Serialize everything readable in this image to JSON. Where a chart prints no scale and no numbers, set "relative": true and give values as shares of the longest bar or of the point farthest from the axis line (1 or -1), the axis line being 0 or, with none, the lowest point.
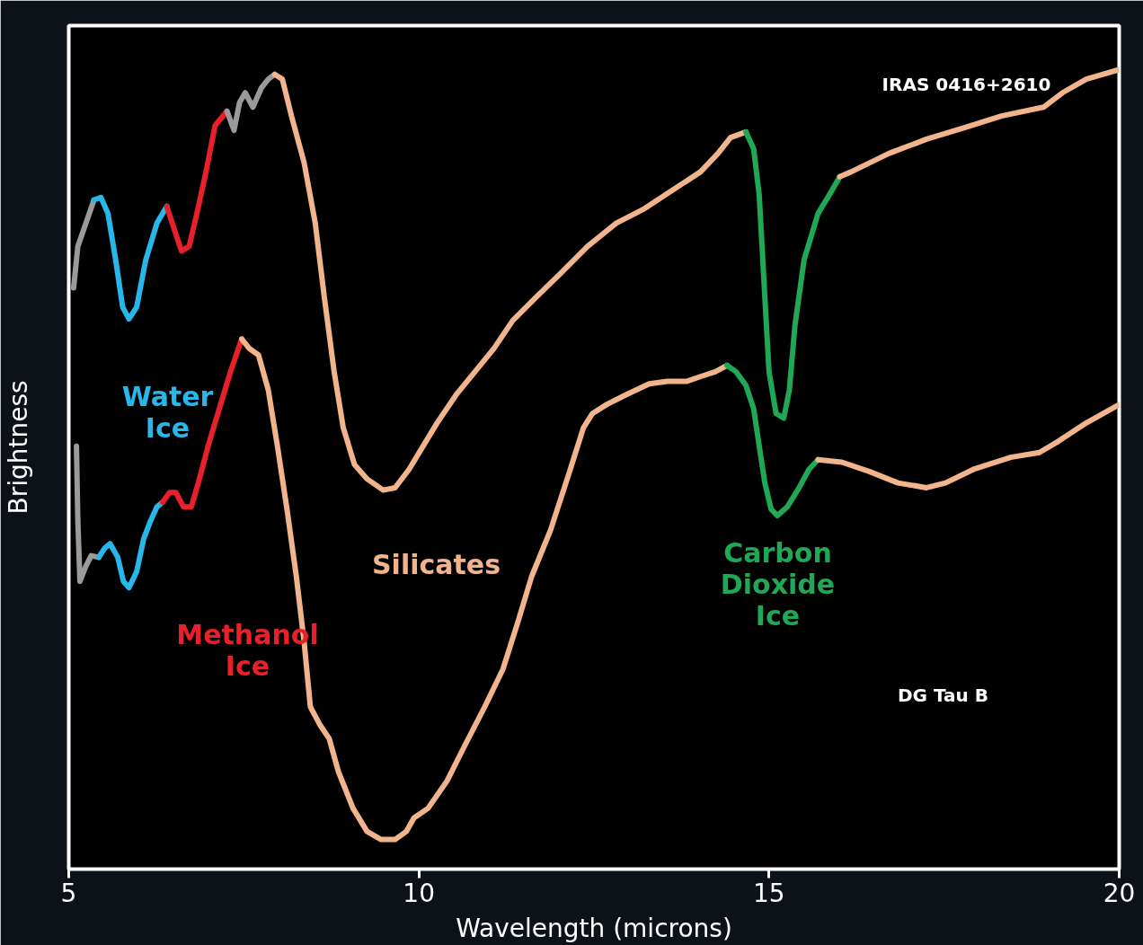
{
  "chart_data": {
    "type": "line",
    "relative": true,
    "xlabel": "Wavelength (microns)",
    "ylabel": "Brightness",
    "xlim": [
      5,
      20
    ],
    "xticks": [
      5,
      10,
      15,
      20
    ],
    "grid": false,
    "marker": "none",
    "line_style": "solid",
    "annotations": [
      "IRAS 0416+2610",
      "Water\nIce",
      "Methanol\nIce",
      "Silicates",
      "Carbon\nDioxide\nIce",
      "DG Tau B"
    ],
    "series": [
      {
        "color": "#9a9a9a",
        "x": [
          5.07,
          5.13,
          5.27,
          5.36
        ],
        "values": [
          0.727,
          0.779,
          0.814,
          0.837
        ]
      },
      {
        "color": "#29b6e8",
        "x": [
          5.36,
          5.46,
          5.56,
          5.67,
          5.77,
          5.86,
          5.97,
          6.1,
          6.26,
          6.4
        ],
        "values": [
          0.837,
          0.84,
          0.82,
          0.762,
          0.703,
          0.688,
          0.703,
          0.762,
          0.808,
          0.829
        ]
      },
      {
        "color": "#e8202a",
        "x": [
          6.4,
          6.5,
          6.61,
          6.72,
          6.83,
          6.96,
          7.09,
          7.26
        ],
        "values": [
          0.829,
          0.802,
          0.773,
          0.779,
          0.82,
          0.872,
          0.93,
          0.948
        ]
      },
      {
        "color": "#9a9a9a",
        "x": [
          7.26,
          7.36,
          7.44,
          7.52,
          7.63,
          7.75,
          7.85,
          7.94
        ],
        "values": [
          0.948,
          0.924,
          0.959,
          0.971,
          0.953,
          0.977,
          0.988,
          0.994
        ]
      },
      {
        "color": "#f2b48c",
        "x": [
          7.94,
          8.05,
          8.18,
          8.36,
          8.52,
          8.65,
          8.79,
          8.92,
          9.08,
          9.26,
          9.49,
          9.66,
          9.86,
          10.06,
          10.26,
          10.53,
          10.8,
          11.07,
          11.34,
          11.67,
          12.01,
          12.41,
          12.82,
          13.22,
          13.62,
          14.02,
          14.27,
          14.45,
          14.67
        ],
        "values": [
          0.994,
          0.988,
          0.942,
          0.884,
          0.808,
          0.715,
          0.622,
          0.552,
          0.506,
          0.488,
          0.474,
          0.477,
          0.5,
          0.529,
          0.558,
          0.593,
          0.622,
          0.651,
          0.686,
          0.715,
          0.744,
          0.779,
          0.808,
          0.826,
          0.849,
          0.872,
          0.895,
          0.915,
          0.922
        ]
      },
      {
        "color": "#1fa855",
        "x": [
          14.67,
          14.78,
          14.86,
          14.94,
          15.0,
          15.1,
          15.21,
          15.29,
          15.37,
          15.5,
          15.7,
          15.9,
          16.01
        ],
        "values": [
          0.922,
          0.901,
          0.843,
          0.715,
          0.622,
          0.57,
          0.564,
          0.599,
          0.68,
          0.762,
          0.82,
          0.849,
          0.866
        ]
      },
      {
        "color": "#f2b48c",
        "x": [
          16.01,
          16.17,
          16.71,
          17.25,
          17.78,
          18.32,
          18.92,
          19.19,
          19.53,
          20.0
        ],
        "values": [
          0.866,
          0.872,
          0.895,
          0.913,
          0.927,
          0.942,
          0.953,
          0.971,
          0.988,
          1.0
        ]
      },
      {
        "color": "#9a9a9a",
        "x": [
          5.11,
          5.13,
          5.16,
          5.24,
          5.32,
          5.43
        ],
        "values": [
          0.529,
          0.436,
          0.36,
          0.378,
          0.392,
          0.39
        ]
      },
      {
        "color": "#29b6e8",
        "x": [
          5.43,
          5.51,
          5.59,
          5.7,
          5.78,
          5.86,
          5.97,
          6.07,
          6.17,
          6.26,
          6.34
        ],
        "values": [
          0.39,
          0.401,
          0.407,
          0.39,
          0.36,
          0.352,
          0.372,
          0.413,
          0.436,
          0.453,
          0.459
        ]
      },
      {
        "color": "#e8202a",
        "x": [
          6.34,
          6.44,
          6.53,
          6.64,
          6.75,
          6.85,
          6.99,
          7.15,
          7.31,
          7.47
        ],
        "values": [
          0.459,
          0.471,
          0.471,
          0.453,
          0.453,
          0.483,
          0.529,
          0.576,
          0.622,
          0.663
        ]
      },
      {
        "color": "#f2b48c",
        "x": [
          7.47,
          7.58,
          7.71,
          7.85,
          7.98,
          8.12,
          8.25,
          8.36,
          8.45,
          8.59,
          8.72,
          8.85,
          9.06,
          9.26,
          9.46,
          9.66,
          9.82,
          9.93,
          10.13,
          10.4,
          10.67,
          10.94,
          11.2,
          11.41,
          11.61,
          11.88,
          12.14,
          12.35,
          12.48,
          12.68,
          12.95,
          13.29,
          13.55,
          13.82,
          14.02,
          14.23,
          14.4
        ],
        "values": [
          0.663,
          0.651,
          0.643,
          0.599,
          0.529,
          0.448,
          0.366,
          0.285,
          0.203,
          0.18,
          0.163,
          0.122,
          0.076,
          0.047,
          0.037,
          0.037,
          0.047,
          0.064,
          0.076,
          0.11,
          0.157,
          0.203,
          0.25,
          0.308,
          0.366,
          0.424,
          0.494,
          0.552,
          0.57,
          0.581,
          0.593,
          0.607,
          0.61,
          0.61,
          0.616,
          0.622,
          0.63
        ]
      },
      {
        "color": "#1fa855",
        "x": [
          14.4,
          14.53,
          14.67,
          14.78,
          14.86,
          14.94,
          15.03,
          15.12,
          15.26,
          15.43,
          15.57,
          15.7
        ],
        "values": [
          0.63,
          0.622,
          0.605,
          0.576,
          0.529,
          0.483,
          0.45,
          0.442,
          0.453,
          0.477,
          0.5,
          0.512
        ]
      },
      {
        "color": "#f2b48c",
        "x": [
          15.7,
          16.04,
          16.44,
          16.84,
          17.25,
          17.52,
          17.92,
          18.45,
          18.86,
          19.13,
          19.53,
          20.0
        ],
        "values": [
          0.512,
          0.509,
          0.497,
          0.483,
          0.477,
          0.483,
          0.5,
          0.515,
          0.521,
          0.535,
          0.558,
          0.581
        ]
      }
    ]
  }
}
